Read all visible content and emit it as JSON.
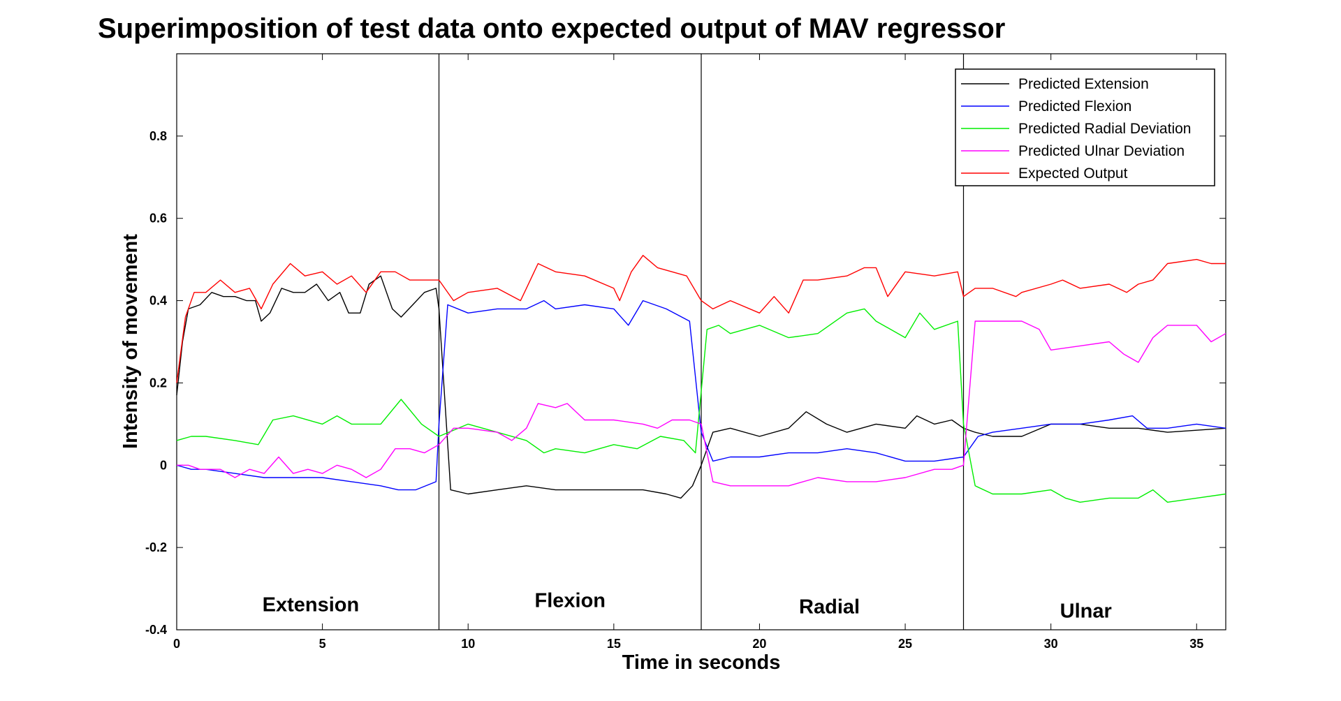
{
  "chart_data": {
    "type": "line",
    "title": "Superimposition of test data onto expected output of MAV regressor",
    "xlabel": "Time in seconds",
    "ylabel": "Intensity of movement",
    "xlim": [
      0,
      36
    ],
    "ylim": [
      -0.4,
      1.0
    ],
    "x_ticks": [
      0,
      5,
      10,
      15,
      20,
      25,
      30,
      35
    ],
    "x_tick_labels": [
      "0",
      "5",
      "10",
      "15",
      "20",
      "25",
      "30",
      "35"
    ],
    "y_ticks": [
      -0.4,
      -0.2,
      0,
      0.2,
      0.4,
      0.6,
      0.8
    ],
    "y_tick_labels": [
      "-0.4",
      "-0.2",
      "0",
      "0.2",
      "0.4",
      "0.6",
      "0.8"
    ],
    "grid": false,
    "legend_position": "top-right",
    "vertical_lines": [
      9,
      18,
      27
    ],
    "annotations": [
      {
        "text": "Extension",
        "x": 4.6,
        "y": -0.355
      },
      {
        "text": "Flexion",
        "x": 13.5,
        "y": -0.345
      },
      {
        "text": "Radial",
        "x": 22.4,
        "y": -0.36
      },
      {
        "text": "Ulnar",
        "x": 31.2,
        "y": -0.37
      }
    ],
    "series": [
      {
        "name": "Predicted Extension",
        "color": "#000000",
        "x": [
          0,
          0.2,
          0.4,
          0.8,
          1.2,
          1.6,
          2.0,
          2.4,
          2.7,
          2.9,
          3.2,
          3.6,
          4.0,
          4.4,
          4.8,
          5.2,
          5.6,
          5.9,
          6.3,
          6.6,
          7.0,
          7.4,
          7.7,
          8.1,
          8.5,
          8.9,
          9.0,
          9.4,
          10,
          11,
          12,
          13,
          14,
          15,
          16,
          16.8,
          17.3,
          17.7,
          18.0,
          18.4,
          19,
          20,
          21,
          21.6,
          22.3,
          23,
          24,
          25,
          25.4,
          26,
          26.6,
          27.0,
          27.4,
          28,
          29,
          30,
          31,
          32,
          33,
          34,
          35,
          36
        ],
        "y": [
          0.17,
          0.3,
          0.38,
          0.39,
          0.42,
          0.41,
          0.41,
          0.4,
          0.4,
          0.35,
          0.37,
          0.43,
          0.42,
          0.42,
          0.44,
          0.4,
          0.42,
          0.37,
          0.37,
          0.44,
          0.46,
          0.38,
          0.36,
          0.39,
          0.42,
          0.43,
          0.38,
          -0.06,
          -0.07,
          -0.06,
          -0.05,
          -0.06,
          -0.06,
          -0.06,
          -0.06,
          -0.07,
          -0.08,
          -0.05,
          0.0,
          0.08,
          0.09,
          0.07,
          0.09,
          0.13,
          0.1,
          0.08,
          0.1,
          0.09,
          0.12,
          0.1,
          0.11,
          0.09,
          0.08,
          0.07,
          0.07,
          0.1,
          0.1,
          0.09,
          0.09,
          0.08,
          0.085,
          0.09
        ]
      },
      {
        "name": "Predicted Flexion",
        "color": "#0000ff",
        "x": [
          0,
          0.5,
          1,
          2,
          3,
          4,
          5,
          6,
          7,
          7.6,
          8.2,
          8.9,
          9.0,
          9.3,
          10,
          11,
          12,
          12.6,
          13,
          14,
          15,
          15.5,
          16,
          16.8,
          17.6,
          18.0,
          18.4,
          19,
          20,
          21,
          22,
          23,
          24,
          25,
          26,
          27,
          27.5,
          28,
          29,
          30,
          31,
          32,
          32.8,
          33.3,
          34,
          35,
          36
        ],
        "y": [
          0,
          -0.01,
          -0.01,
          -0.02,
          -0.03,
          -0.03,
          -0.03,
          -0.04,
          -0.05,
          -0.06,
          -0.06,
          -0.04,
          0.1,
          0.39,
          0.37,
          0.38,
          0.38,
          0.4,
          0.38,
          0.39,
          0.38,
          0.34,
          0.4,
          0.38,
          0.35,
          0.08,
          0.01,
          0.02,
          0.02,
          0.03,
          0.03,
          0.04,
          0.03,
          0.01,
          0.01,
          0.02,
          0.07,
          0.08,
          0.09,
          0.1,
          0.1,
          0.11,
          0.12,
          0.09,
          0.09,
          0.1,
          0.09
        ]
      },
      {
        "name": "Predicted Radial Deviation",
        "color": "#00ee00",
        "x": [
          0,
          0.5,
          1,
          2,
          2.8,
          3.3,
          4,
          5,
          5.5,
          6,
          7,
          7.7,
          8.4,
          9.0,
          10,
          11,
          12,
          12.6,
          13,
          14,
          15,
          15.8,
          16.6,
          17.4,
          17.8,
          18.2,
          18.6,
          19,
          20,
          21,
          22,
          23,
          23.6,
          24,
          25,
          25.5,
          26,
          26.8,
          27.0,
          27.4,
          28,
          29,
          30,
          30.5,
          31,
          32,
          33,
          33.5,
          34,
          35,
          36
        ],
        "y": [
          0.06,
          0.07,
          0.07,
          0.06,
          0.05,
          0.11,
          0.12,
          0.1,
          0.12,
          0.1,
          0.1,
          0.16,
          0.1,
          0.07,
          0.1,
          0.08,
          0.06,
          0.03,
          0.04,
          0.03,
          0.05,
          0.04,
          0.07,
          0.06,
          0.03,
          0.33,
          0.34,
          0.32,
          0.34,
          0.31,
          0.32,
          0.37,
          0.38,
          0.35,
          0.31,
          0.37,
          0.33,
          0.35,
          0.1,
          -0.05,
          -0.07,
          -0.07,
          -0.06,
          -0.08,
          -0.09,
          -0.08,
          -0.08,
          -0.06,
          -0.09,
          -0.08,
          -0.07
        ]
      },
      {
        "name": "Predicted Ulnar Deviation",
        "color": "#ff00ff",
        "x": [
          0,
          0.4,
          0.8,
          1.5,
          2,
          2.5,
          3,
          3.5,
          4,
          4.5,
          5,
          5.5,
          6,
          6.5,
          7,
          7.5,
          8,
          8.5,
          9.0,
          9.5,
          10,
          11,
          11.5,
          12,
          12.4,
          13,
          13.4,
          14,
          15,
          16,
          16.5,
          17,
          17.6,
          18.0,
          18.4,
          19,
          20,
          21,
          22,
          23,
          24,
          25,
          26,
          26.6,
          27.0,
          27.4,
          28,
          29,
          29.6,
          30,
          31,
          32,
          32.5,
          33,
          33.5,
          34,
          35,
          35.5,
          36
        ],
        "y": [
          0,
          0.0,
          -0.01,
          -0.01,
          -0.03,
          -0.01,
          -0.02,
          0.02,
          -0.02,
          -0.01,
          -0.02,
          0.0,
          -0.01,
          -0.03,
          -0.01,
          0.04,
          0.04,
          0.03,
          0.05,
          0.09,
          0.09,
          0.08,
          0.06,
          0.09,
          0.15,
          0.14,
          0.15,
          0.11,
          0.11,
          0.1,
          0.09,
          0.11,
          0.11,
          0.1,
          -0.04,
          -0.05,
          -0.05,
          -0.05,
          -0.03,
          -0.04,
          -0.04,
          -0.03,
          -0.01,
          -0.01,
          0.0,
          0.35,
          0.35,
          0.35,
          0.33,
          0.28,
          0.29,
          0.3,
          0.27,
          0.25,
          0.31,
          0.34,
          0.34,
          0.3,
          0.32
        ]
      },
      {
        "name": "Expected Output",
        "color": "#ff0000",
        "x": [
          0,
          0.3,
          0.6,
          1,
          1.5,
          2,
          2.5,
          2.9,
          3.3,
          3.9,
          4.4,
          5,
          5.5,
          6,
          6.5,
          7,
          7.5,
          8,
          8.5,
          9.0,
          9.5,
          10,
          11,
          11.8,
          12,
          12.4,
          13,
          14,
          15,
          15.2,
          15.6,
          16,
          16.5,
          17,
          17.5,
          18.0,
          18.4,
          19,
          20,
          20.5,
          21,
          21.5,
          22,
          23,
          23.6,
          24,
          24.4,
          25,
          26,
          26.8,
          27.0,
          27.4,
          28,
          28.8,
          29,
          30,
          30.4,
          31,
          32,
          32.6,
          33,
          33.5,
          34,
          35,
          35.5,
          36
        ],
        "y": [
          0.2,
          0.36,
          0.42,
          0.42,
          0.45,
          0.42,
          0.43,
          0.38,
          0.44,
          0.49,
          0.46,
          0.47,
          0.44,
          0.46,
          0.42,
          0.47,
          0.47,
          0.45,
          0.45,
          0.45,
          0.4,
          0.42,
          0.43,
          0.4,
          0.43,
          0.49,
          0.47,
          0.46,
          0.43,
          0.4,
          0.47,
          0.51,
          0.48,
          0.47,
          0.46,
          0.4,
          0.38,
          0.4,
          0.37,
          0.41,
          0.37,
          0.45,
          0.45,
          0.46,
          0.48,
          0.48,
          0.41,
          0.47,
          0.46,
          0.47,
          0.41,
          0.43,
          0.43,
          0.41,
          0.42,
          0.44,
          0.45,
          0.43,
          0.44,
          0.42,
          0.44,
          0.45,
          0.49,
          0.5,
          0.49,
          0.49
        ]
      }
    ]
  }
}
